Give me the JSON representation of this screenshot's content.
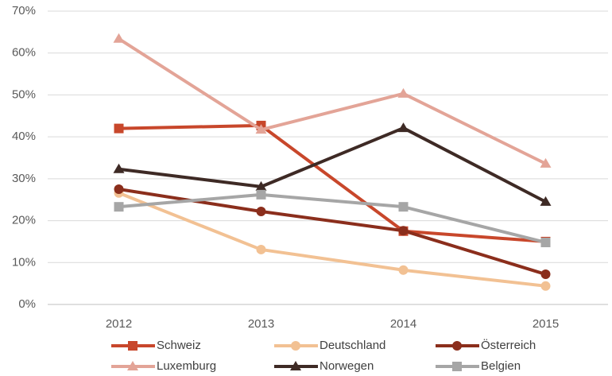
{
  "chart_data": {
    "type": "line",
    "categories": [
      "2012",
      "2013",
      "2014",
      "2015"
    ],
    "series": [
      {
        "name": "Schweiz",
        "color": "#c8472b",
        "marker": "square",
        "values": [
          42,
          42.7,
          17.5,
          15
        ]
      },
      {
        "name": "Deutschland",
        "color": "#f2c193",
        "marker": "circle",
        "values": [
          26.6,
          13.1,
          8.2,
          4.4
        ]
      },
      {
        "name": "Österreich",
        "color": "#8b2e1c",
        "marker": "circle",
        "values": [
          27.5,
          22.2,
          17.6,
          7.2
        ]
      },
      {
        "name": "Luxemburg",
        "color": "#e3a497",
        "marker": "triangle",
        "values": [
          63.4,
          41.7,
          50.3,
          33.6
        ]
      },
      {
        "name": "Norwegen",
        "color": "#3e2a25",
        "marker": "triangle",
        "values": [
          32.3,
          28.1,
          42.1,
          24.5
        ]
      },
      {
        "name": "Belgien",
        "color": "#a6a6a6",
        "marker": "square",
        "values": [
          23.3,
          26.2,
          23.3,
          14.8
        ]
      }
    ],
    "ylim": [
      0,
      70
    ],
    "yticks": [
      {
        "value": 0,
        "label": "0%"
      },
      {
        "value": 10,
        "label": "10%"
      },
      {
        "value": 20,
        "label": "20%"
      },
      {
        "value": 30,
        "label": "30%"
      },
      {
        "value": 40,
        "label": "40%"
      },
      {
        "value": 50,
        "label": "50%"
      },
      {
        "value": 60,
        "label": "60%"
      },
      {
        "value": 70,
        "label": "70%"
      }
    ],
    "grid": true,
    "legend": "bottom"
  }
}
